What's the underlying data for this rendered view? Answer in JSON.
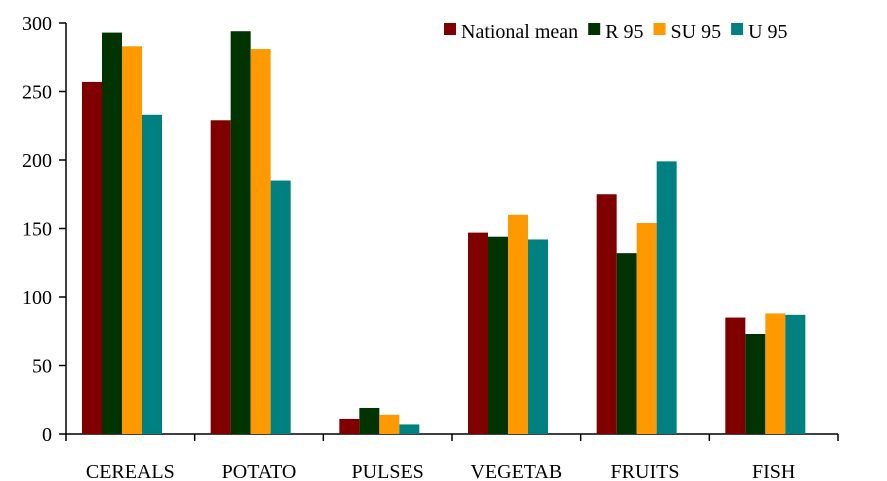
{
  "chart_data": {
    "type": "bar",
    "title": "",
    "xlabel": "",
    "ylabel": "",
    "categories": [
      "CEREALS",
      "POTATO",
      "PULSES",
      "VEGETAB",
      "FRUITS",
      "FISH"
    ],
    "series": [
      {
        "name": "National mean",
        "color": "#800000",
        "values": [
          257,
          229,
          11,
          147,
          175,
          85
        ]
      },
      {
        "name": "R 95",
        "color": "#003300",
        "values": [
          293,
          294,
          19,
          144,
          132,
          73
        ]
      },
      {
        "name": "SU 95",
        "color": "#FF9900",
        "values": [
          283,
          281,
          14,
          160,
          154,
          88
        ]
      },
      {
        "name": "U 95",
        "color": "#008080",
        "values": [
          233,
          185,
          7,
          142,
          199,
          87
        ]
      }
    ],
    "ylim": [
      0,
      300
    ],
    "yticks": [
      0,
      50,
      100,
      150,
      200,
      250,
      300
    ],
    "grid": false,
    "legend_position": "top-right"
  }
}
